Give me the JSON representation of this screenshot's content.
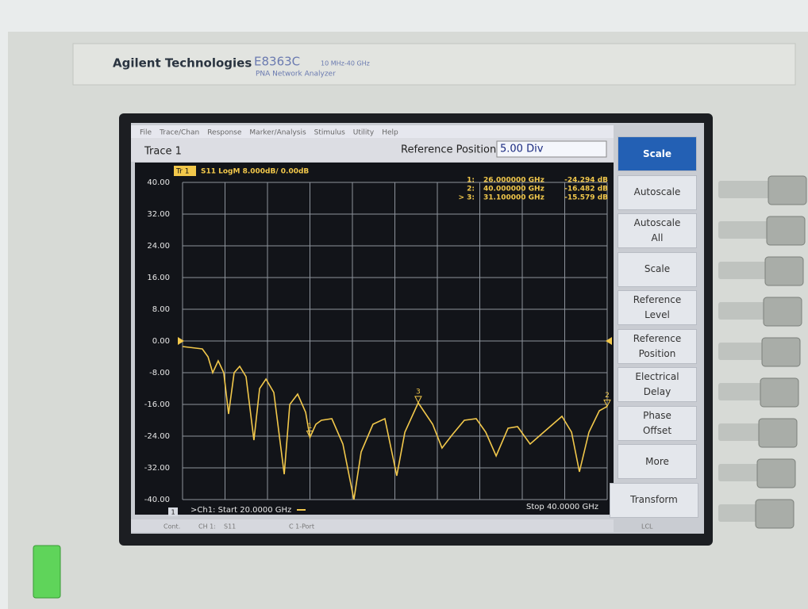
{
  "brand": {
    "maker": "Agilent Technologies",
    "model": "E8363C",
    "range": "10 MHz-40 GHz",
    "product": "PNA Network Analyzer"
  },
  "menu": [
    "File",
    "Trace/Chan",
    "Response",
    "Marker/Analysis",
    "Stimulus",
    "Utility",
    "Help"
  ],
  "toolbar": {
    "trace": "Trace 1",
    "field": "Reference Position",
    "entry": "5.00 Div"
  },
  "softkeys": [
    {
      "label": "Scale",
      "active": true
    },
    {
      "label": "Autoscale",
      "active": false
    },
    {
      "label": "Autoscale All",
      "active": false
    },
    {
      "label": "Scale",
      "active": false
    },
    {
      "label": "Reference Level",
      "active": false
    },
    {
      "label": "Reference Position",
      "active": false
    },
    {
      "label": "Electrical Delay",
      "active": false
    },
    {
      "label": "Phase Offset",
      "active": false
    },
    {
      "label": "More",
      "active": false
    },
    {
      "label": "Transform",
      "active": false
    }
  ],
  "status": [
    "Cont.",
    "CH 1:",
    "S11",
    "C 1-Port",
    "LCL"
  ],
  "chart_data": {
    "type": "line",
    "trace_tag": "Tr 1",
    "start_label": ">Ch1: Start 20.0000 GHz",
    "stop_label": "Stop 40.0000 GHz",
    "channel": "1",
    "x": [
      20,
      20.93,
      21.2,
      21.42,
      21.68,
      21.94,
      22.17,
      22.43,
      22.69,
      22.99,
      23.36,
      23.63,
      23.93,
      24.3,
      24.79,
      25.05,
      25.42,
      25.8,
      26,
      26.28,
      26.54,
      27.03,
      27.55,
      28.07,
      28.41,
      28.97,
      29.53,
      30.09,
      30.47,
      31.1,
      31.78,
      32.22,
      32.71,
      33.27,
      33.83,
      34.28,
      34.77,
      35.33,
      35.78,
      36.37,
      37.01,
      37.87,
      38.32,
      38.69,
      39.14,
      39.63,
      40
    ],
    "series": [
      {
        "name": "S11 LogM 8.000dB/ 0.00dB",
        "color": "#f2c84b",
        "values": [
          -1.4,
          -2,
          -4,
          -8,
          -5,
          -8,
          -18.4,
          -8,
          -6.4,
          -9,
          -25,
          -12,
          -9.6,
          -13,
          -33.6,
          -16,
          -13.4,
          -18,
          -24.3,
          -21,
          -20,
          -19.6,
          -26,
          -40,
          -28,
          -21,
          -19.6,
          -34,
          -23,
          -15.6,
          -21,
          -27,
          -23.6,
          -20,
          -19.6,
          -23,
          -29,
          -22,
          -21.6,
          -26,
          -23,
          -19,
          -23,
          -33,
          -23,
          -17.6,
          -16.5
        ]
      }
    ],
    "xlim": [
      20,
      40
    ],
    "ylim": [
      -40,
      40
    ],
    "yticks": [
      {
        "value": 40,
        "label": "40.00"
      },
      {
        "value": 32,
        "label": "32.00"
      },
      {
        "value": 24,
        "label": "24.00"
      },
      {
        "value": 16,
        "label": "16.00"
      },
      {
        "value": 8,
        "label": "8.00"
      },
      {
        "value": 0,
        "label": "0.00"
      },
      {
        "value": -8,
        "label": "-8.00"
      },
      {
        "value": -16,
        "label": "-16.00"
      },
      {
        "value": -24,
        "label": "-24.00"
      },
      {
        "value": -32,
        "label": "-32.00"
      },
      {
        "value": -40,
        "label": "-40.00"
      }
    ],
    "grid": true,
    "markers": [
      {
        "tag": "1",
        "name": "1:",
        "x": 26,
        "y": -24.294,
        "x_label": "26.000000 GHz",
        "y_label": "-24.294 dB"
      },
      {
        "tag": "2",
        "name": "2:",
        "x": 40,
        "y": -16.482,
        "x_label": "40.000000 GHz",
        "y_label": "-16.482 dB"
      },
      {
        "tag": "3",
        "name": "> 3:",
        "x": 31.1,
        "y": -15.579,
        "x_label": "31.100000 GHz",
        "y_label": "-15.579 dB"
      }
    ]
  }
}
